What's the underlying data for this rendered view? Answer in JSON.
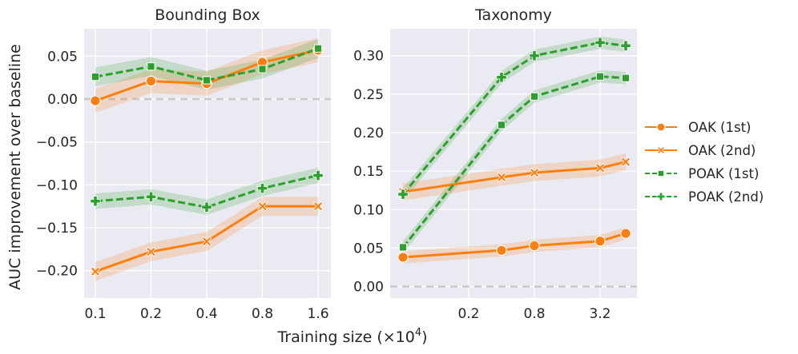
{
  "chart_data": {
    "type": "line",
    "ylabel": "AUC improvement over baseline",
    "xlabel": "Training size (×10",
    "xlabel_sup": "4",
    "xlabel_end": ")",
    "colors": {
      "oak": "#ff7f0e",
      "poak": "#2ca02c",
      "baseline": "#c8c8c8"
    },
    "legend": {
      "position": "right",
      "entries": [
        {
          "label": "OAK (1st)",
          "marker": "circle",
          "dash": "solid",
          "color": "#ff7f0e"
        },
        {
          "label": "OAK (2nd)",
          "marker": "x",
          "dash": "solid",
          "color": "#ff7f0e"
        },
        {
          "label": "POAK (1st)",
          "marker": "square",
          "dash": "dashed",
          "color": "#2ca02c"
        },
        {
          "label": "POAK (2nd)",
          "marker": "plus",
          "dash": "dashed",
          "color": "#2ca02c"
        }
      ]
    },
    "panels": [
      {
        "title": "Bounding Box",
        "x": [
          0.1,
          0.2,
          0.4,
          0.8,
          1.6
        ],
        "xscale": "log2",
        "xticks": [
          0.1,
          0.2,
          0.4,
          0.8,
          1.6
        ],
        "xtick_labels": [
          "0.1",
          "0.2",
          "0.4",
          "0.8",
          "1.6"
        ],
        "ylim": [
          -0.232,
          0.082
        ],
        "yticks": [
          0.05,
          0.0,
          -0.05,
          -0.1,
          -0.15,
          -0.2
        ],
        "ytick_labels": [
          "0.05",
          "0.00",
          "−0.05",
          "−0.10",
          "−0.15",
          "−0.20"
        ],
        "baseline": 0.0,
        "series": [
          {
            "name": "OAK (1st)",
            "values": [
              -0.002,
              0.021,
              0.018,
              0.043,
              0.057
            ],
            "band": 0.014
          },
          {
            "name": "OAK (2nd)",
            "values": [
              -0.201,
              -0.178,
              -0.166,
              -0.125,
              -0.125
            ],
            "band": 0.011
          },
          {
            "name": "POAK (1st)",
            "values": [
              0.026,
              0.038,
              0.022,
              0.035,
              0.059
            ],
            "band": 0.011
          },
          {
            "name": "POAK (2nd)",
            "values": [
              -0.119,
              -0.114,
              -0.126,
              -0.104,
              -0.089
            ],
            "band": 0.009
          }
        ]
      },
      {
        "title": "Taxonomy",
        "x": [
          0.05,
          0.4,
          0.8,
          3.2,
          5.5
        ],
        "xscale": "log2",
        "xticks": [
          0.2,
          0.8,
          3.2
        ],
        "xtick_labels": [
          "0.2",
          "0.8",
          "3.2"
        ],
        "ylim": [
          -0.015,
          0.335
        ],
        "yticks": [
          0.0,
          0.05,
          0.1,
          0.15,
          0.2,
          0.25,
          0.3
        ],
        "ytick_labels": [
          "0.00",
          "0.05",
          "0.10",
          "0.15",
          "0.20",
          "0.25",
          "0.30"
        ],
        "baseline": 0.0,
        "series": [
          {
            "name": "OAK (1st)",
            "values": [
              0.038,
              0.047,
              0.053,
              0.059,
              0.069
            ],
            "band": 0.008
          },
          {
            "name": "OAK (2nd)",
            "values": [
              0.123,
              0.142,
              0.148,
              0.154,
              0.162
            ],
            "band": 0.011
          },
          {
            "name": "POAK (1st)",
            "values": [
              0.051,
              0.21,
              0.247,
              0.273,
              0.271
            ],
            "band": 0.008
          },
          {
            "name": "POAK (2nd)",
            "values": [
              0.12,
              0.272,
              0.3,
              0.317,
              0.313
            ],
            "band": 0.008
          }
        ]
      }
    ]
  }
}
